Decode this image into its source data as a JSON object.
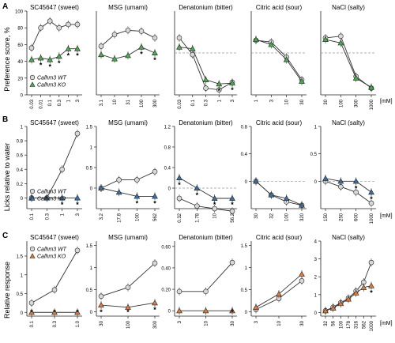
{
  "figure": {
    "mM_label": "[mM]",
    "panels": [
      {
        "letter": "A",
        "ylabel": "Preference score, %"
      },
      {
        "letter": "B",
        "ylabel": "Licks relative to water"
      },
      {
        "letter": "C",
        "ylabel": "Relative response"
      }
    ]
  },
  "colors": {
    "wt": "#d8d8d8",
    "koA": "#49ad4c",
    "koB": "#3b6fa6",
    "koC": "#e07a3c",
    "axis": "#222222",
    "dashed": "#999999"
  },
  "chart_data": [
    {
      "type": "line",
      "panel": "A",
      "title": "SC45647 (sweet)",
      "ylabel": "Preference score, %",
      "yticks": [
        "0",
        "20",
        "40",
        "60",
        "80",
        "100"
      ],
      "ylim": [
        0,
        100
      ],
      "x": [
        "0.03",
        "0.01",
        "0.1",
        "0.3",
        "1",
        "3"
      ],
      "series": [
        {
          "name": "Calhm3 WT",
          "marker": "circle",
          "values": [
            56,
            80,
            88,
            80,
            84,
            84
          ]
        },
        {
          "name": "Calhm3 KO",
          "marker": "triangle",
          "values": [
            42,
            44,
            42,
            46,
            55,
            55
          ]
        }
      ],
      "asterisks": [
        "*",
        "*",
        "*",
        "*",
        "*"
      ],
      "legend": "bottom-left"
    },
    {
      "type": "line",
      "panel": "A",
      "title": "MSG (umami)",
      "yticks": [],
      "ylim": [
        0,
        100
      ],
      "x": [
        "3.1",
        "10",
        "31",
        "100",
        "300"
      ],
      "series": [
        {
          "name": "Calhm3 WT",
          "marker": "circle",
          "values": [
            58,
            72,
            77,
            76,
            68
          ]
        },
        {
          "name": "Calhm3 KO",
          "marker": "triangle",
          "values": [
            48,
            43,
            47,
            57,
            50
          ]
        }
      ],
      "asterisks": [
        "*",
        "*"
      ]
    },
    {
      "type": "line",
      "panel": "A",
      "title": "Denatonium (bitter)",
      "yticks": [],
      "ylim": [
        0,
        100
      ],
      "x": [
        "0.03",
        "0.1",
        "0.3",
        "1",
        "3"
      ],
      "series": [
        {
          "name": "Calhm3 WT",
          "marker": "circle",
          "values": [
            68,
            48,
            8,
            6,
            15
          ]
        },
        {
          "name": "Calhm3 KO",
          "marker": "triangle",
          "values": [
            57,
            55,
            18,
            13,
            14
          ]
        }
      ],
      "asterisks": [
        "*",
        "*"
      ],
      "reference_line": 50
    },
    {
      "type": "line",
      "panel": "A",
      "title": "Citric acid (sour)",
      "yticks": [],
      "ylim": [
        0,
        100
      ],
      "x": [
        "1",
        "3",
        "10",
        "30"
      ],
      "series": [
        {
          "name": "Calhm3 WT",
          "marker": "circle",
          "values": [
            65,
            63,
            45,
            18
          ]
        },
        {
          "name": "Calhm3 KO",
          "marker": "triangle",
          "values": [
            66,
            60,
            42,
            16
          ]
        }
      ],
      "reference_line": 50
    },
    {
      "type": "line",
      "panel": "A",
      "title": "NaCl (salty)",
      "yticks": [],
      "ylim": [
        0,
        100
      ],
      "x": [
        "30",
        "100",
        "300",
        "1000"
      ],
      "series": [
        {
          "name": "Calhm3 WT",
          "marker": "circle",
          "values": [
            68,
            70,
            22,
            8
          ]
        },
        {
          "name": "Calhm3 KO",
          "marker": "triangle",
          "values": [
            66,
            62,
            20,
            9
          ]
        }
      ],
      "reference_line": 50
    },
    {
      "type": "line",
      "panel": "B",
      "title": "SC45647 (sweet)",
      "ylabel": "Licks relative to water",
      "yticks": [
        "0",
        "0.2",
        "0.4",
        "0.6",
        "0.8",
        "1"
      ],
      "ylim": [
        -0.15,
        1
      ],
      "x": [
        "0.1",
        "0.3",
        "1",
        "3"
      ],
      "series": [
        {
          "name": "Calhm3 WT",
          "marker": "circle",
          "values": [
            0.0,
            0.0,
            0.4,
            0.9
          ]
        },
        {
          "name": "Calhm3 KO",
          "marker": "triangle",
          "values": [
            0.0,
            0.0,
            0.0,
            0.0
          ]
        }
      ],
      "asterisks": [
        "*",
        "*"
      ],
      "legend": "bottom-left"
    },
    {
      "type": "line",
      "panel": "B",
      "title": "MSG (umami)",
      "yticks": [
        "0",
        "0.5",
        "1",
        "1.5"
      ],
      "ylim": [
        -0.5,
        1.5
      ],
      "x": [
        "3.2",
        "17.8",
        "100",
        "562"
      ],
      "series": [
        {
          "name": "Calhm3 WT",
          "marker": "circle",
          "values": [
            0.0,
            0.2,
            0.2,
            0.4
          ]
        },
        {
          "name": "Calhm3 KO",
          "marker": "triangle",
          "values": [
            0.0,
            -0.1,
            -0.2,
            -0.2
          ]
        }
      ],
      "asterisks": [
        "*",
        "*"
      ]
    },
    {
      "type": "line",
      "panel": "B",
      "title": "Denatonium (bitter)",
      "yticks": [
        "0",
        "0.4",
        "0.8",
        "1.2"
      ],
      "ylim": [
        -0.4,
        1.2
      ],
      "x": [
        "0.32",
        "1.78",
        "10",
        "56.2"
      ],
      "series": [
        {
          "name": "Calhm3 WT",
          "marker": "circle",
          "values": [
            -0.2,
            -0.35,
            -0.4,
            -0.45
          ]
        },
        {
          "name": "Calhm3 KO",
          "marker": "triangle",
          "values": [
            0.2,
            0.0,
            -0.2,
            -0.2
          ]
        }
      ],
      "asterisks": [
        "*",
        "*",
        "*",
        "*"
      ],
      "reference_line": 0
    },
    {
      "type": "line",
      "panel": "B",
      "title": "Citric acid (sour)",
      "yticks": [
        "0",
        "0.4",
        "0.8"
      ],
      "ylim": [
        -0.4,
        0.8
      ],
      "x": [
        "30",
        "32",
        "100",
        "320"
      ],
      "series": [
        {
          "name": "Calhm3 WT",
          "marker": "circle",
          "values": [
            0.0,
            -0.2,
            -0.3,
            -0.35
          ]
        },
        {
          "name": "Calhm3 KO",
          "marker": "triangle",
          "values": [
            0.0,
            -0.2,
            -0.25,
            -0.35
          ]
        }
      ],
      "reference_line": 0
    },
    {
      "type": "line",
      "panel": "B",
      "title": "NaCl (salty)",
      "yticks": [
        "0",
        "0.5",
        "1"
      ],
      "ylim": [
        -0.5,
        1
      ],
      "x": [
        "150",
        "250",
        "600",
        "1000"
      ],
      "series": [
        {
          "name": "Calhm3 WT",
          "marker": "circle",
          "values": [
            0.0,
            -0.1,
            -0.2,
            -0.4
          ]
        },
        {
          "name": "Calhm3 KO",
          "marker": "triangle",
          "values": [
            0.05,
            0.0,
            0.0,
            -0.2
          ]
        }
      ],
      "asterisks": [
        "*",
        "*"
      ],
      "reference_line": 0
    },
    {
      "type": "line",
      "panel": "C",
      "title": "SC45647 (sweet)",
      "ylabel": "Relative response",
      "yticks": [
        "0",
        "0.5",
        "1",
        "1.5"
      ],
      "ylim": [
        -0.1,
        1.9
      ],
      "x": [
        "0.1",
        "0.3",
        "1.0"
      ],
      "series": [
        {
          "name": "Calhm3 WT",
          "marker": "circle",
          "values": [
            0.25,
            0.6,
            1.65
          ]
        },
        {
          "name": "Calhm3 KO",
          "marker": "triangle",
          "values": [
            0.0,
            0.0,
            0.0
          ]
        }
      ],
      "asterisks": [
        "*",
        "*",
        "*"
      ],
      "legend": "upper-left"
    },
    {
      "type": "line",
      "panel": "C",
      "title": "MSG (umami)",
      "yticks": [
        "0",
        "0.5",
        "1",
        "1.5"
      ],
      "ylim": [
        -0.1,
        1.6
      ],
      "x": [
        "30",
        "100",
        "300"
      ],
      "series": [
        {
          "name": "Calhm3 WT",
          "marker": "circle",
          "values": [
            0.35,
            0.55,
            1.1
          ]
        },
        {
          "name": "Calhm3 KO",
          "marker": "triangle",
          "values": [
            0.15,
            0.1,
            0.2
          ]
        }
      ],
      "asterisks": [
        "*",
        "*",
        "*"
      ]
    },
    {
      "type": "line",
      "panel": "C",
      "title": "Denatonium (bitter)",
      "yticks": [
        "0",
        "0.20",
        "0.40",
        "0.60"
      ],
      "ylim": [
        -0.05,
        0.65
      ],
      "x": [
        "3",
        "10",
        "30"
      ],
      "series": [
        {
          "name": "Calhm3 WT",
          "marker": "circle",
          "values": [
            0.18,
            0.18,
            0.45
          ]
        },
        {
          "name": "Calhm3 KO",
          "marker": "triangle",
          "values": [
            0.0,
            0.0,
            0.0
          ]
        }
      ],
      "asterisks": [
        "*"
      ]
    },
    {
      "type": "line",
      "panel": "C",
      "title": "Citric acid (sour)",
      "yticks": [
        "0",
        "0.5",
        "1",
        "1.5"
      ],
      "ylim": [
        -0.1,
        1.6
      ],
      "x": [
        "3",
        "10",
        "30"
      ],
      "series": [
        {
          "name": "Calhm3 WT",
          "marker": "circle",
          "values": [
            0.05,
            0.3,
            0.7
          ]
        },
        {
          "name": "Calhm3 KO",
          "marker": "triangle",
          "values": [
            0.1,
            0.4,
            0.85
          ]
        }
      ]
    },
    {
      "type": "line",
      "panel": "C",
      "title": "NaCl (salty)",
      "yticks": [
        "0",
        "1",
        "2",
        "3",
        "4"
      ],
      "ylim": [
        -0.2,
        4
      ],
      "x": [
        "32",
        "56",
        "100",
        "178",
        "316",
        "562",
        "1000"
      ],
      "series": [
        {
          "name": "Calhm3 WT",
          "marker": "circle",
          "values": [
            0.1,
            0.3,
            0.55,
            0.8,
            1.2,
            1.7,
            2.8
          ]
        },
        {
          "name": "Calhm3 KO",
          "marker": "triangle",
          "values": [
            0.1,
            0.25,
            0.5,
            0.75,
            1.1,
            1.4,
            1.5
          ]
        }
      ],
      "asterisks": [
        "*"
      ]
    }
  ]
}
